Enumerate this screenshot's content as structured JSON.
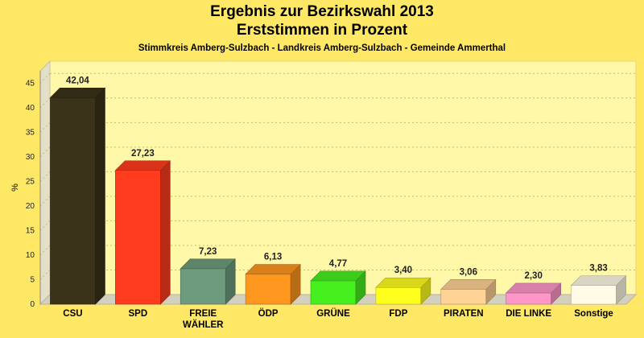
{
  "header": {
    "title_line1": "Ergebnis zur Bezirkswahl 2013",
    "title_line2": "Erststimmen in Prozent",
    "subtitle": "Stimmkreis Amberg-Sulzbach - Landkreis Amberg-Sulzbach - Gemeinde Ammerthal"
  },
  "chart_data": {
    "type": "bar",
    "title": "Ergebnis zur Bezirkswahl 2013 Erststimmen in Prozent",
    "subtitle": "Stimmkreis Amberg-Sulzbach - Landkreis Amberg-Sulzbach - Gemeinde Ammerthal",
    "xlabel": "",
    "ylabel": "%",
    "ylim": [
      0,
      47.5
    ],
    "yticks": [
      0,
      5,
      10,
      15,
      20,
      25,
      30,
      35,
      40,
      45
    ],
    "grid": true,
    "categories": [
      "CSU",
      "SPD",
      "FREIE WÄHLER",
      "ÖDP",
      "GRÜNE",
      "FDP",
      "PIRATEN",
      "DIE LINKE",
      "Sonstige"
    ],
    "category_lines": [
      [
        "CSU"
      ],
      [
        "SPD"
      ],
      [
        "FREIE",
        "WÄHLER"
      ],
      [
        "ÖDP"
      ],
      [
        "GRÜNE"
      ],
      [
        "FDP"
      ],
      [
        "PIRATEN"
      ],
      [
        "DIE LINKE"
      ],
      [
        "Sonstige"
      ]
    ],
    "values": [
      42.04,
      27.23,
      7.23,
      6.13,
      4.77,
      3.4,
      3.06,
      2.3,
      3.83
    ],
    "value_labels": [
      "42,04",
      "27,23",
      "7,23",
      "6,13",
      "4,77",
      "3,40",
      "3,06",
      "2,30",
      "3,83"
    ],
    "colors": [
      "#3a3319",
      "#ff3c1e",
      "#6e9b7d",
      "#ff961e",
      "#46f01e",
      "#ffff1e",
      "#ffd296",
      "#ff96c8",
      "#fffbe6"
    ]
  }
}
